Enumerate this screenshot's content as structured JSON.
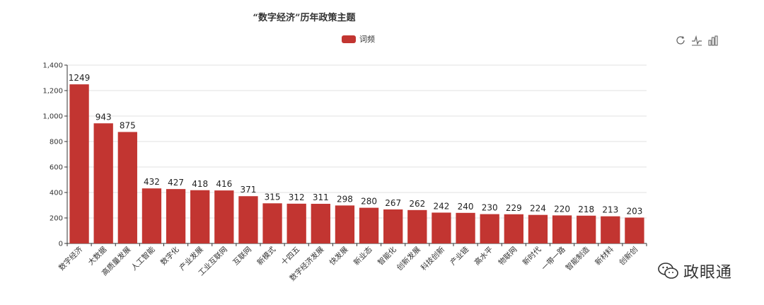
{
  "chart_data": {
    "type": "bar",
    "title": "“数字经济”历年政策主题",
    "legend_position": "top-center",
    "grid": true,
    "ylim": [
      0,
      1400
    ],
    "yticks": [
      0,
      200,
      400,
      600,
      800,
      1000,
      1200,
      1400
    ],
    "ytick_labels": [
      "0",
      "200",
      "400",
      "600",
      "800",
      "1,000",
      "1,200",
      "1,400"
    ],
    "categories": [
      "数字经济",
      "大数据",
      "高质量发展",
      "人工智能",
      "数字化",
      "产业发展",
      "工业互联网",
      "互联网",
      "新模式",
      "十四五",
      "数字经济发展",
      "快发展",
      "新业态",
      "智能化",
      "创新发展",
      "科技创新",
      "产业链",
      "高水平",
      "物联网",
      "新时代",
      "一带一路",
      "智能制造",
      "新材料",
      "创新创"
    ],
    "series": [
      {
        "name": "词频",
        "color": "#c23531",
        "values": [
          1249,
          943,
          875,
          432,
          427,
          418,
          416,
          371,
          315,
          312,
          311,
          298,
          280,
          267,
          262,
          242,
          240,
          230,
          229,
          224,
          220,
          218,
          213,
          203
        ]
      }
    ]
  },
  "toolbox": {
    "icons": [
      "restore-icon",
      "line-chart-icon",
      "bar-chart-icon"
    ]
  },
  "watermark": {
    "text": "政眼通",
    "icon": "wechat-icon"
  }
}
